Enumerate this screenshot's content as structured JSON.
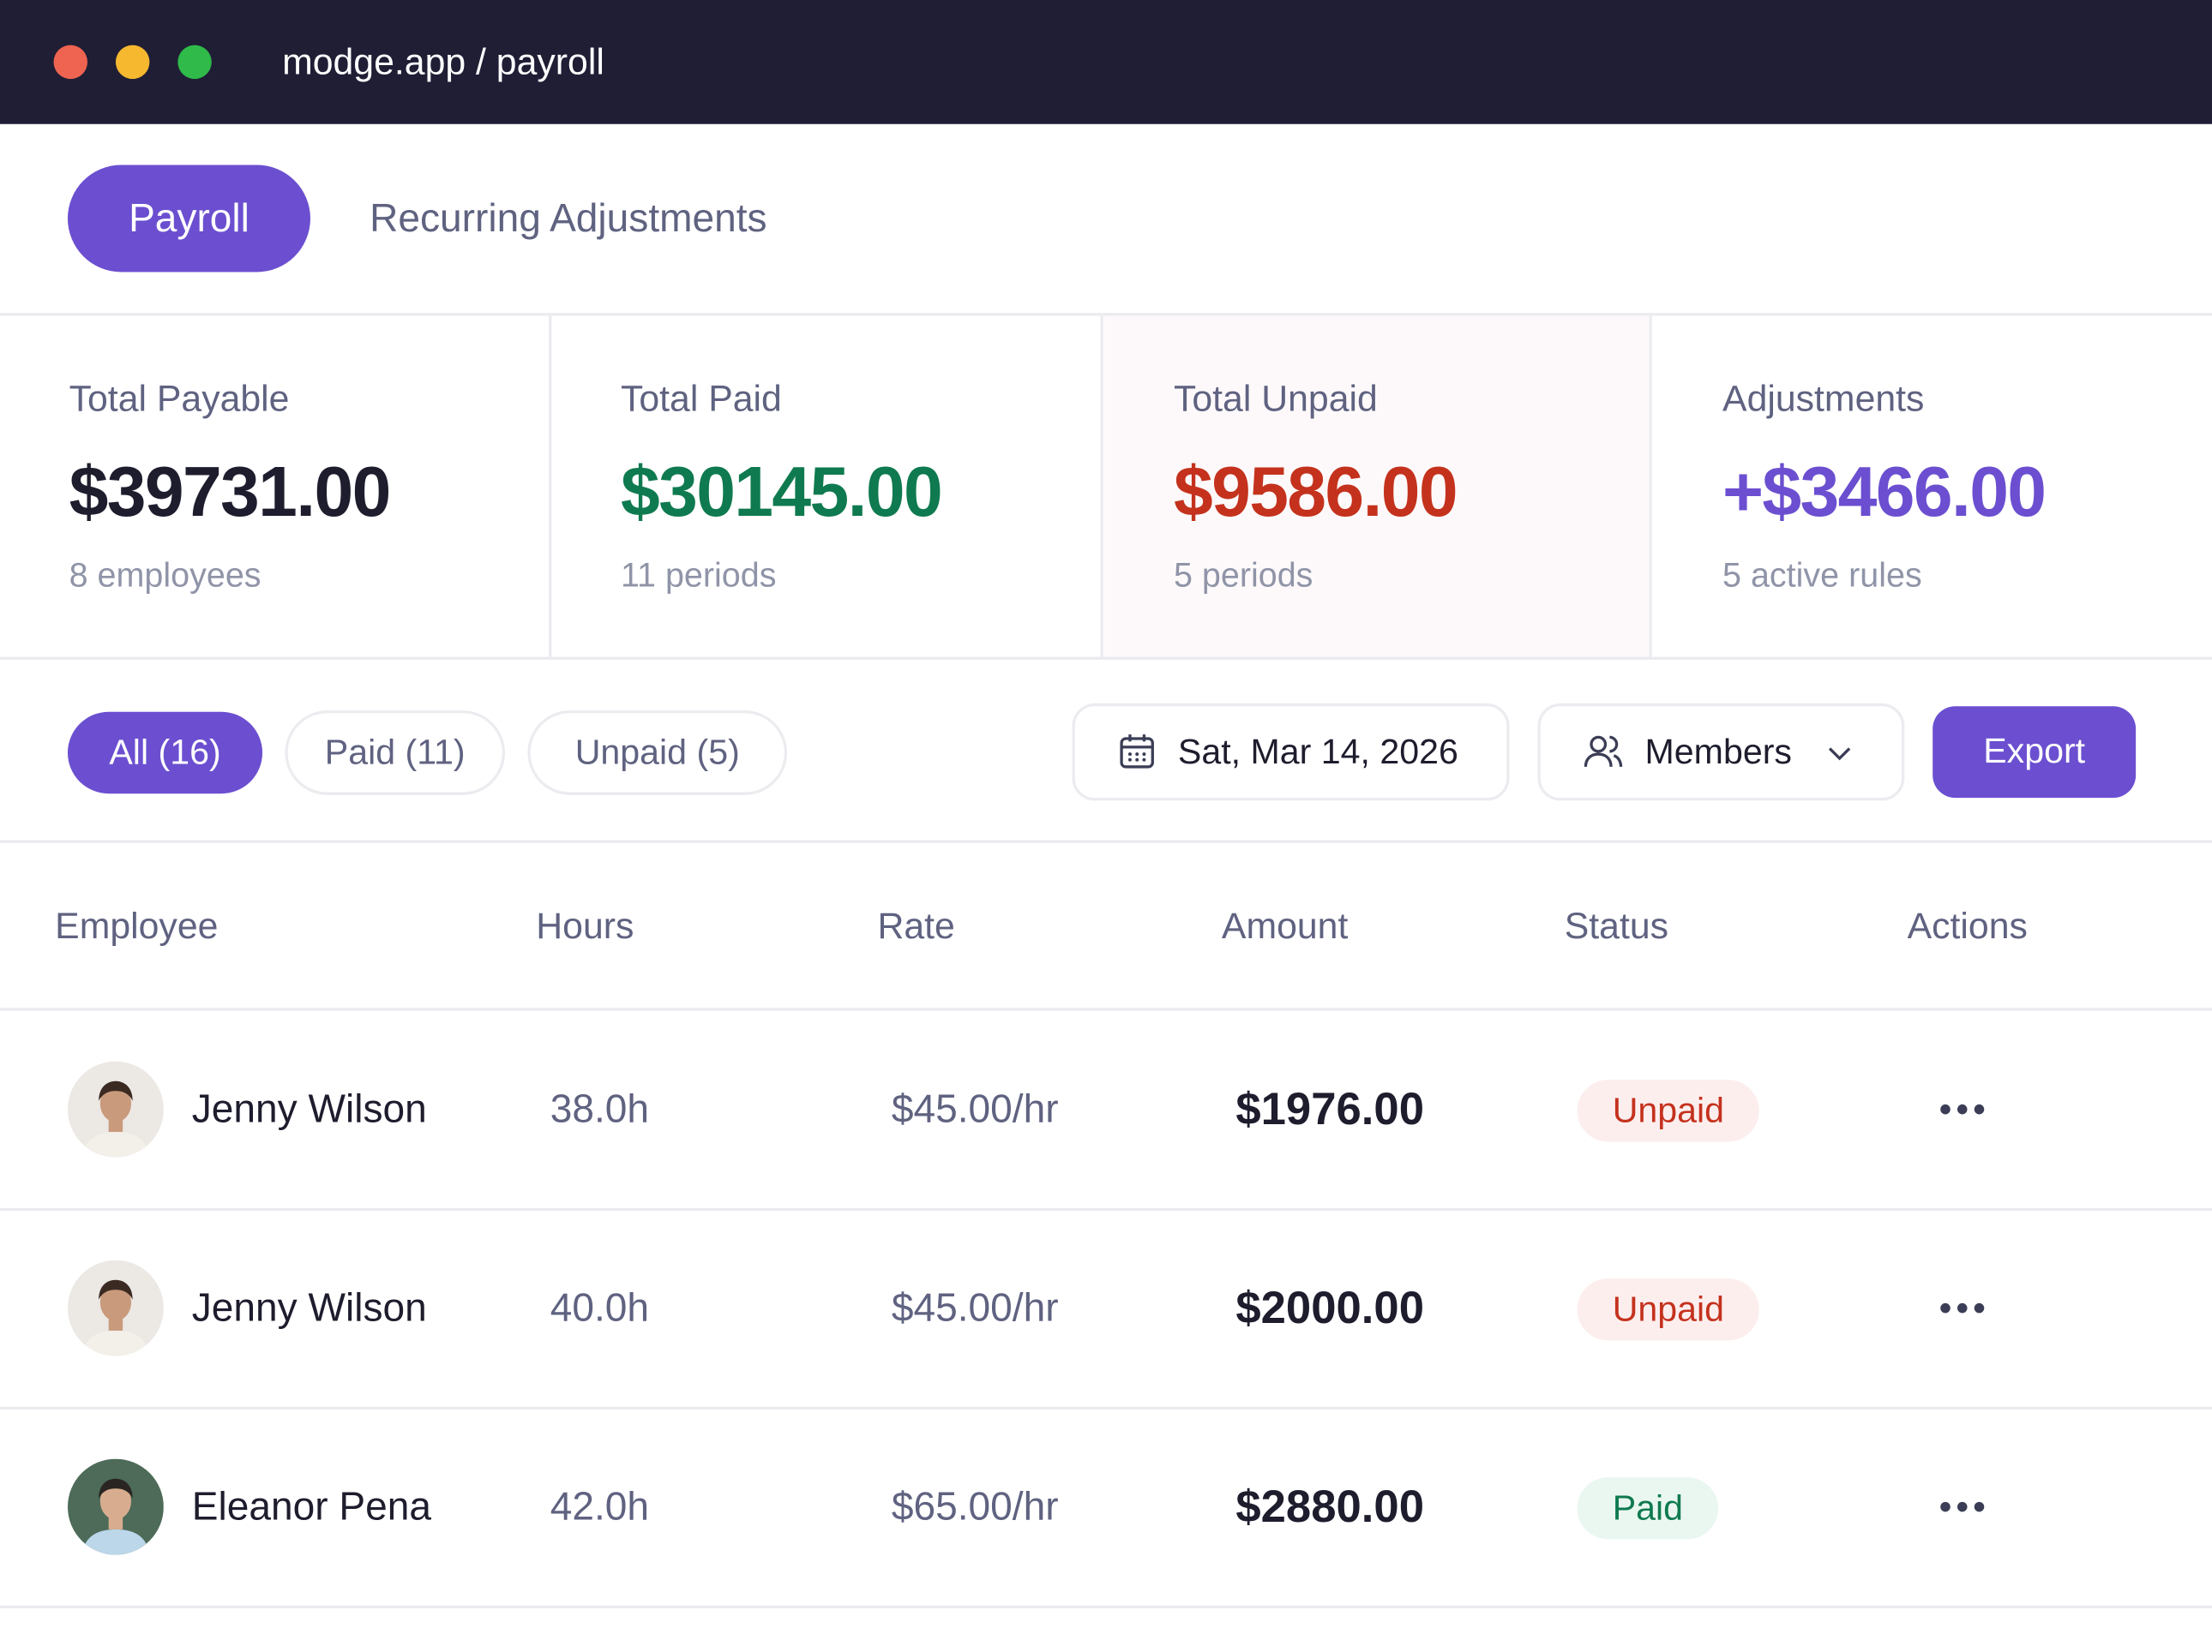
{
  "window": {
    "url": "modge.app / payroll"
  },
  "tabs": [
    "Payroll",
    "Recurring Adjustments"
  ],
  "stats": [
    {
      "label": "Total Payable",
      "value": "$39731.00",
      "note": "8 employees"
    },
    {
      "label": "Total Paid",
      "value": "$30145.00",
      "note": "11 periods"
    },
    {
      "label": "Total Unpaid",
      "value": "$9586.00",
      "note": "5 periods"
    },
    {
      "label": "Adjustments",
      "value": "+$3466.00",
      "note": "5 active rules"
    }
  ],
  "filters": [
    "All (16)",
    "Paid (11)",
    "Unpaid (5)"
  ],
  "date": "Sat, Mar 14, 2026",
  "members": "Members",
  "export": "Export",
  "table": {
    "headers": [
      "Employee",
      "Hours",
      "Rate",
      "Amount",
      "Status",
      "Actions"
    ],
    "rows": [
      [
        "Jenny Wilson",
        "38.0h",
        "$45.00/hr",
        "$1976.00",
        "Unpaid"
      ],
      [
        "Jenny Wilson",
        "40.0h",
        "$45.00/hr",
        "$2000.00",
        "Unpaid"
      ],
      [
        "Eleanor Pena",
        "42.0h",
        "$65.00/hr",
        "$2880.00",
        "Paid"
      ]
    ]
  }
}
